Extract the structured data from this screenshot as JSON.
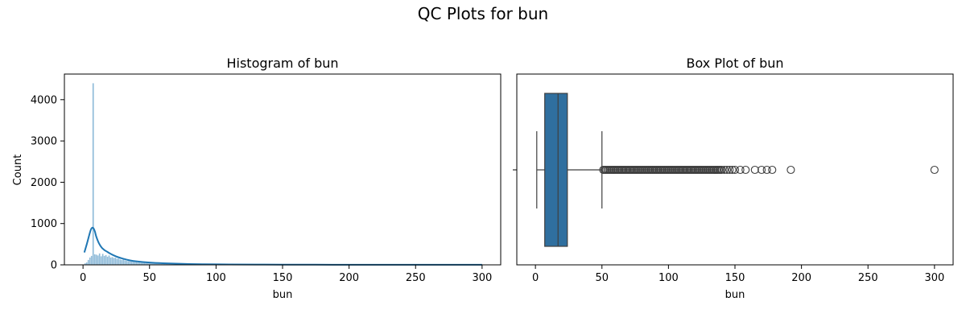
{
  "figure": {
    "title": "QC Plots for bun"
  },
  "chart_data": [
    {
      "type": "bar",
      "title": "Histogram of bun",
      "xlabel": "bun",
      "ylabel": "Count",
      "xlim": [
        -14,
        314
      ],
      "ylim": [
        0,
        4620
      ],
      "xticks": [
        0,
        50,
        100,
        150,
        200,
        250,
        300
      ],
      "yticks": [
        0,
        1000,
        2000,
        3000,
        4000
      ],
      "bar_color": "#1f77b4",
      "bins": [
        {
          "x": 1.0,
          "y": 40
        },
        {
          "x": 2.2,
          "y": 60
        },
        {
          "x": 3.4,
          "y": 120
        },
        {
          "x": 4.6,
          "y": 180
        },
        {
          "x": 5.8,
          "y": 220
        },
        {
          "x": 7.0,
          "y": 4400
        },
        {
          "x": 8.2,
          "y": 260
        },
        {
          "x": 9.4,
          "y": 250
        },
        {
          "x": 10.6,
          "y": 230
        },
        {
          "x": 11.8,
          "y": 280
        },
        {
          "x": 13.0,
          "y": 210
        },
        {
          "x": 14.2,
          "y": 270
        },
        {
          "x": 15.4,
          "y": 220
        },
        {
          "x": 16.6,
          "y": 240
        },
        {
          "x": 17.8,
          "y": 200
        },
        {
          "x": 19.0,
          "y": 230
        },
        {
          "x": 20.2,
          "y": 180
        },
        {
          "x": 21.4,
          "y": 190
        },
        {
          "x": 22.6,
          "y": 170
        },
        {
          "x": 23.8,
          "y": 175
        },
        {
          "x": 25.0,
          "y": 150
        },
        {
          "x": 26.2,
          "y": 155
        },
        {
          "x": 27.4,
          "y": 130
        },
        {
          "x": 28.6,
          "y": 120
        },
        {
          "x": 29.8,
          "y": 150
        },
        {
          "x": 31.0,
          "y": 110
        },
        {
          "x": 32.2,
          "y": 100
        },
        {
          "x": 33.4,
          "y": 95
        },
        {
          "x": 34.6,
          "y": 90
        },
        {
          "x": 35.8,
          "y": 85
        },
        {
          "x": 37.0,
          "y": 80
        },
        {
          "x": 38.2,
          "y": 75
        },
        {
          "x": 39.4,
          "y": 70
        },
        {
          "x": 40.6,
          "y": 65
        },
        {
          "x": 41.8,
          "y": 60
        },
        {
          "x": 43.0,
          "y": 58
        },
        {
          "x": 44.2,
          "y": 55
        },
        {
          "x": 45.4,
          "y": 52
        },
        {
          "x": 46.6,
          "y": 50
        },
        {
          "x": 47.8,
          "y": 48
        },
        {
          "x": 49.0,
          "y": 45
        },
        {
          "x": 50.2,
          "y": 43
        },
        {
          "x": 51.4,
          "y": 40
        },
        {
          "x": 52.6,
          "y": 38
        },
        {
          "x": 53.8,
          "y": 36
        },
        {
          "x": 55.0,
          "y": 34
        },
        {
          "x": 56.2,
          "y": 32
        },
        {
          "x": 57.4,
          "y": 30
        },
        {
          "x": 58.6,
          "y": 28
        },
        {
          "x": 59.8,
          "y": 26
        },
        {
          "x": 61.0,
          "y": 24
        },
        {
          "x": 62.2,
          "y": 22
        },
        {
          "x": 63.4,
          "y": 21
        },
        {
          "x": 64.6,
          "y": 20
        },
        {
          "x": 65.8,
          "y": 19
        },
        {
          "x": 67.0,
          "y": 18
        },
        {
          "x": 68.2,
          "y": 17
        },
        {
          "x": 69.4,
          "y": 16
        },
        {
          "x": 70.6,
          "y": 15
        },
        {
          "x": 71.8,
          "y": 14
        },
        {
          "x": 73.0,
          "y": 13
        },
        {
          "x": 74.2,
          "y": 12
        },
        {
          "x": 75.4,
          "y": 12
        },
        {
          "x": 76.6,
          "y": 11
        },
        {
          "x": 77.8,
          "y": 10
        },
        {
          "x": 79.0,
          "y": 10
        },
        {
          "x": 80.2,
          "y": 9
        },
        {
          "x": 81.4,
          "y": 9
        },
        {
          "x": 82.6,
          "y": 8
        },
        {
          "x": 83.8,
          "y": 8
        },
        {
          "x": 85.0,
          "y": 7
        },
        {
          "x": 86.2,
          "y": 7
        },
        {
          "x": 87.4,
          "y": 6
        },
        {
          "x": 88.6,
          "y": 6
        },
        {
          "x": 89.8,
          "y": 5
        },
        {
          "x": 91.0,
          "y": 5
        },
        {
          "x": 92.2,
          "y": 5
        },
        {
          "x": 93.4,
          "y": 4
        },
        {
          "x": 94.6,
          "y": 4
        },
        {
          "x": 95.8,
          "y": 4
        },
        {
          "x": 97.0,
          "y": 3
        },
        {
          "x": 98.2,
          "y": 3
        },
        {
          "x": 99.4,
          "y": 3
        }
      ],
      "bin_width": 1.2,
      "kde": {
        "x": [
          1,
          3,
          5,
          6,
          7,
          8,
          9,
          10,
          12,
          14,
          16,
          18,
          20,
          23,
          26,
          30,
          35,
          40,
          50,
          60,
          75,
          90,
          110,
          130,
          150,
          175,
          200,
          225,
          250,
          275,
          300
        ],
        "y": [
          300,
          520,
          760,
          860,
          900,
          880,
          800,
          680,
          520,
          420,
          360,
          320,
          280,
          230,
          190,
          150,
          110,
          85,
          55,
          38,
          24,
          15,
          10,
          7,
          5,
          4,
          3,
          2,
          2,
          2,
          2
        ]
      }
    },
    {
      "type": "box",
      "title": "Box Plot of bun",
      "xlabel": "bun",
      "xlim": [
        -14,
        314
      ],
      "xticks": [
        0,
        50,
        100,
        150,
        200,
        250,
        300
      ],
      "box_color": "#2f6f9f",
      "stats": {
        "whisker_low": 1,
        "q1": 7,
        "median": 17,
        "q3": 24,
        "whisker_high": 50
      },
      "outliers": [
        51,
        52,
        53,
        54,
        55,
        56,
        57,
        58,
        59,
        60,
        61,
        62,
        63,
        64,
        65,
        66,
        67,
        68,
        69,
        70,
        71,
        72,
        73,
        74,
        75,
        76,
        77,
        78,
        79,
        80,
        81,
        82,
        83,
        84,
        85,
        86,
        87,
        88,
        89,
        90,
        91,
        92,
        93,
        94,
        95,
        96,
        97,
        98,
        99,
        100,
        101,
        102,
        103,
        104,
        105,
        106,
        107,
        108,
        109,
        110,
        111,
        112,
        113,
        114,
        115,
        116,
        117,
        118,
        119,
        120,
        121,
        122,
        123,
        124,
        125,
        126,
        127,
        128,
        129,
        130,
        131,
        132,
        133,
        134,
        135,
        136,
        137,
        138,
        139,
        140,
        142,
        144,
        146,
        148,
        150,
        154,
        158,
        165,
        170,
        174,
        178,
        192,
        300
      ]
    }
  ]
}
